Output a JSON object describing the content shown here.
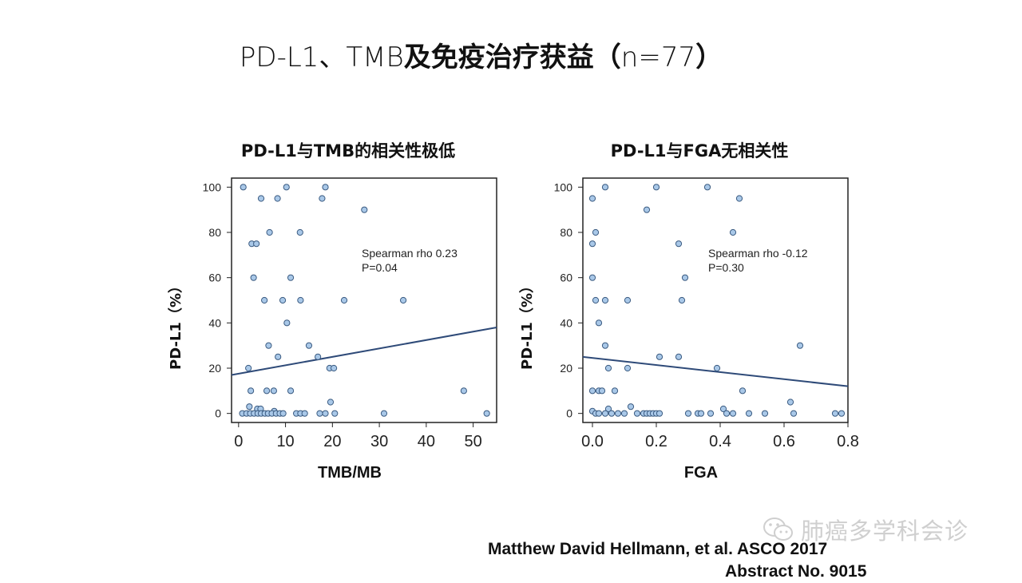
{
  "slide": {
    "title_prefix": "PD-L1、TMB",
    "title_bold": "及免疫治疗获益",
    "title_open": "（",
    "title_n": "n=77",
    "title_close": "）"
  },
  "chart_data": [
    {
      "type": "scatter",
      "title": "PD-L1与TMB的相关性极低",
      "xlabel": "TMB/MB",
      "ylabel": "PD-L1（%）",
      "xlim": [
        -1.5,
        55
      ],
      "ylim": [
        -4,
        104
      ],
      "xticks": [
        0,
        10,
        20,
        30,
        40,
        50
      ],
      "xtick_labels": [
        "0",
        "10",
        "20",
        "30",
        "40",
        "50"
      ],
      "yticks": [
        0,
        20,
        40,
        60,
        80,
        100
      ],
      "ytick_labels": [
        "0",
        "20",
        "40",
        "60",
        "80",
        "100"
      ],
      "grid": false,
      "annotations": [
        "Spearman rho 0.23",
        "P=0.04"
      ],
      "regression_line": {
        "x": [
          -1.5,
          55
        ],
        "y": [
          17,
          38
        ]
      },
      "x": [
        1,
        10.2,
        18.5,
        4.8,
        8.3,
        17.8,
        26.8,
        6.6,
        13.1,
        2.8,
        3.8,
        3.2,
        11.1,
        5.5,
        9.4,
        13.2,
        35.1,
        22.5,
        10.3,
        6.4,
        15,
        8.4,
        16.9,
        19.4,
        20.3,
        2.1,
        2.6,
        6,
        7.5,
        11.1,
        48,
        19.6,
        2.3,
        4,
        4.7,
        7.6,
        0.8,
        1.7,
        2.5,
        3.3,
        4.1,
        4.8,
        5.6,
        6.3,
        7.1,
        8,
        8.8,
        9.5,
        12.3,
        13.2,
        14.1,
        17.3,
        18.5,
        20.5,
        31,
        52.9
      ],
      "y": [
        100,
        100,
        100,
        95,
        95,
        95,
        90,
        80,
        80,
        75,
        75,
        60,
        60,
        50,
        50,
        50,
        50,
        50,
        40,
        30,
        30,
        25,
        25,
        20,
        20,
        20,
        10,
        10,
        10,
        10,
        10,
        5,
        3,
        2,
        2,
        1,
        0,
        0,
        0,
        0,
        0,
        0,
        0,
        0,
        0,
        0,
        0,
        0,
        0,
        0,
        0,
        0,
        0,
        0,
        0,
        0
      ]
    },
    {
      "type": "scatter",
      "title": "PD-L1与FGA无相关性",
      "xlabel": "FGA",
      "ylabel": "PD-L1（%）",
      "xlim": [
        -0.03,
        0.8
      ],
      "ylim": [
        -4,
        104
      ],
      "xticks": [
        0.0,
        0.2,
        0.4,
        0.6,
        0.8
      ],
      "xtick_labels": [
        "0.0",
        "0.2",
        "0.4",
        "0.6",
        "0.8"
      ],
      "yticks": [
        0,
        20,
        40,
        60,
        80,
        100
      ],
      "ytick_labels": [
        "0",
        "20",
        "40",
        "60",
        "80",
        "100"
      ],
      "grid": false,
      "annotations": [
        "Spearman rho -0.12",
        "P=0.30"
      ],
      "regression_line": {
        "x": [
          -0.03,
          0.8
        ],
        "y": [
          25,
          12
        ]
      },
      "x": [
        0.04,
        0.2,
        0.36,
        0.0,
        0.46,
        0.17,
        0.01,
        0.44,
        0.0,
        0.27,
        0.0,
        0.01,
        0.04,
        0.11,
        0.28,
        0.29,
        0.02,
        0.04,
        0.21,
        0.27,
        0.05,
        0.11,
        0.39,
        0.0,
        0.02,
        0.03,
        0.07,
        0.47,
        0.62,
        0.12,
        0.05,
        0.41,
        0.0,
        0.01,
        0.02,
        0.04,
        0.06,
        0.08,
        0.1,
        0.14,
        0.16,
        0.17,
        0.18,
        0.19,
        0.2,
        0.21,
        0.3,
        0.33,
        0.34,
        0.37,
        0.42,
        0.44,
        0.49,
        0.54,
        0.63,
        0.76,
        0.78,
        0.65
      ],
      "y": [
        100,
        100,
        100,
        95,
        95,
        90,
        80,
        80,
        75,
        75,
        60,
        50,
        50,
        50,
        50,
        60,
        40,
        30,
        25,
        25,
        20,
        20,
        20,
        10,
        10,
        10,
        10,
        10,
        5,
        3,
        2,
        2,
        1,
        0,
        0,
        0,
        0,
        0,
        0,
        0,
        0,
        0,
        0,
        0,
        0,
        0,
        0,
        0,
        0,
        0,
        0,
        0,
        0,
        0,
        0,
        0,
        0,
        30
      ]
    }
  ],
  "watermark": {
    "text": "肺癌多学科会诊",
    "icon": "wechat-icon"
  },
  "citation": {
    "line1": "Matthew David Hellmann, et al.  ASCO  2017",
    "line2": "Abstract No. 9015"
  },
  "colors": {
    "point_fill": "#a9c8e8",
    "point_stroke": "#3a5a80",
    "regression_line": "#2e4a78",
    "frame": "#222222"
  }
}
